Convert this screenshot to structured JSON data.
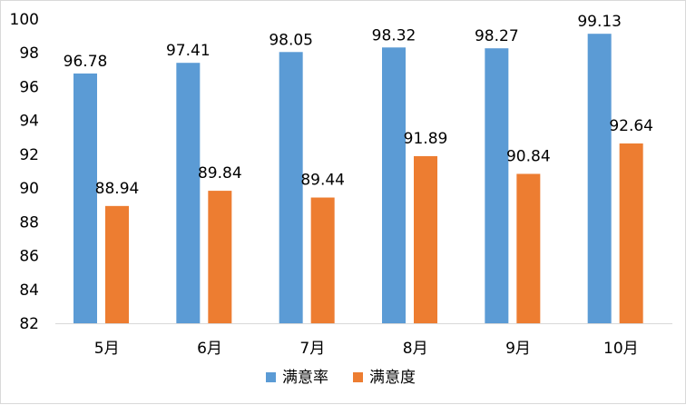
{
  "chart_data": {
    "type": "bar",
    "categories": [
      "5月",
      "6月",
      "7月",
      "8月",
      "9月",
      "10月"
    ],
    "series": [
      {
        "name": "满意率",
        "color": "#5B9BD5",
        "values": [
          96.78,
          97.41,
          98.05,
          98.32,
          98.27,
          99.13
        ]
      },
      {
        "name": "满意度",
        "color": "#ED7D31",
        "values": [
          88.94,
          89.84,
          89.44,
          91.89,
          90.84,
          92.64
        ]
      }
    ],
    "ylim": [
      82,
      100
    ],
    "yticks": [
      82,
      84,
      86,
      88,
      90,
      92,
      94,
      96,
      98,
      100
    ],
    "grid": false,
    "legend_position": "bottom",
    "data_labels": true
  }
}
